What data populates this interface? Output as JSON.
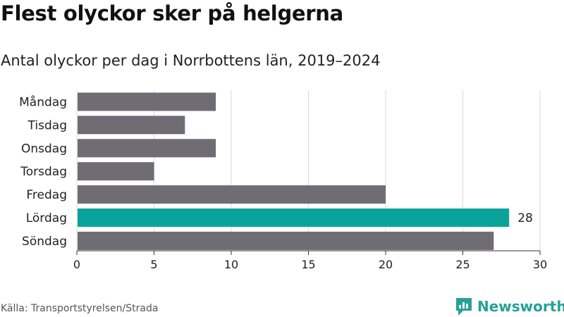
{
  "title": "Flest olyckor sker på helgerna",
  "subtitle": "Antal olyckor per dag i Norrbottens län, 2019–2024",
  "source": "Källa: Transportstyrelsen/Strada",
  "brand": "Newsworthy",
  "colors": {
    "bar": "#6f6c73",
    "highlight": "#0aa399",
    "grid": "#d9d9d9",
    "brand": "#26a198"
  },
  "chart_data": {
    "type": "bar",
    "orientation": "horizontal",
    "categories": [
      "Måndag",
      "Tisdag",
      "Onsdag",
      "Torsdag",
      "Fredag",
      "Lördag",
      "Söndag"
    ],
    "values": [
      9,
      7,
      9,
      5,
      20,
      28,
      27
    ],
    "highlight_index": 5,
    "data_labels": [
      {
        "category": "Lördag",
        "text": "28"
      }
    ],
    "xlim": [
      0,
      30
    ],
    "xticks": [
      0,
      5,
      10,
      15,
      20,
      25,
      30
    ],
    "grid": true,
    "xlabel": "",
    "ylabel": ""
  }
}
